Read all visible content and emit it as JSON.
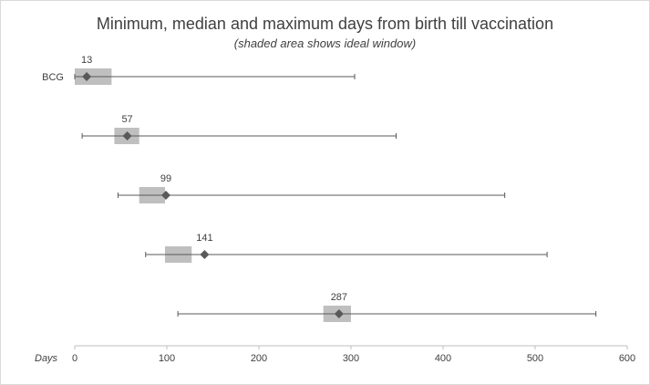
{
  "chart_data": {
    "type": "range-dot",
    "title": "Minimum, median and maximum days from birth till vaccination",
    "subtitle": "(shaded area shows ideal window)",
    "xlabel": "Days",
    "xlim": [
      0,
      600
    ],
    "xticks": [
      0,
      100,
      200,
      300,
      400,
      500,
      600
    ],
    "rows": [
      {
        "label": "BCG",
        "min": 0,
        "median": 13,
        "max": 304,
        "window": [
          0,
          40
        ],
        "median_label": "13"
      },
      {
        "label": "",
        "min": 8,
        "median": 57,
        "max": 349,
        "window": [
          43,
          70
        ],
        "median_label": "57"
      },
      {
        "label": "",
        "min": 47,
        "median": 99,
        "max": 467,
        "window": [
          70,
          98
        ],
        "median_label": "99"
      },
      {
        "label": "",
        "min": 77,
        "median": 141,
        "max": 513,
        "window": [
          98,
          127
        ],
        "median_label": "141"
      },
      {
        "label": "",
        "min": 112,
        "median": 287,
        "max": 566,
        "window": [
          270,
          300
        ],
        "median_label": "287"
      }
    ],
    "colors": {
      "window": "#bfbfbf",
      "line": "#595959",
      "marker": "#595959",
      "axis": "#bfbfbf"
    }
  }
}
